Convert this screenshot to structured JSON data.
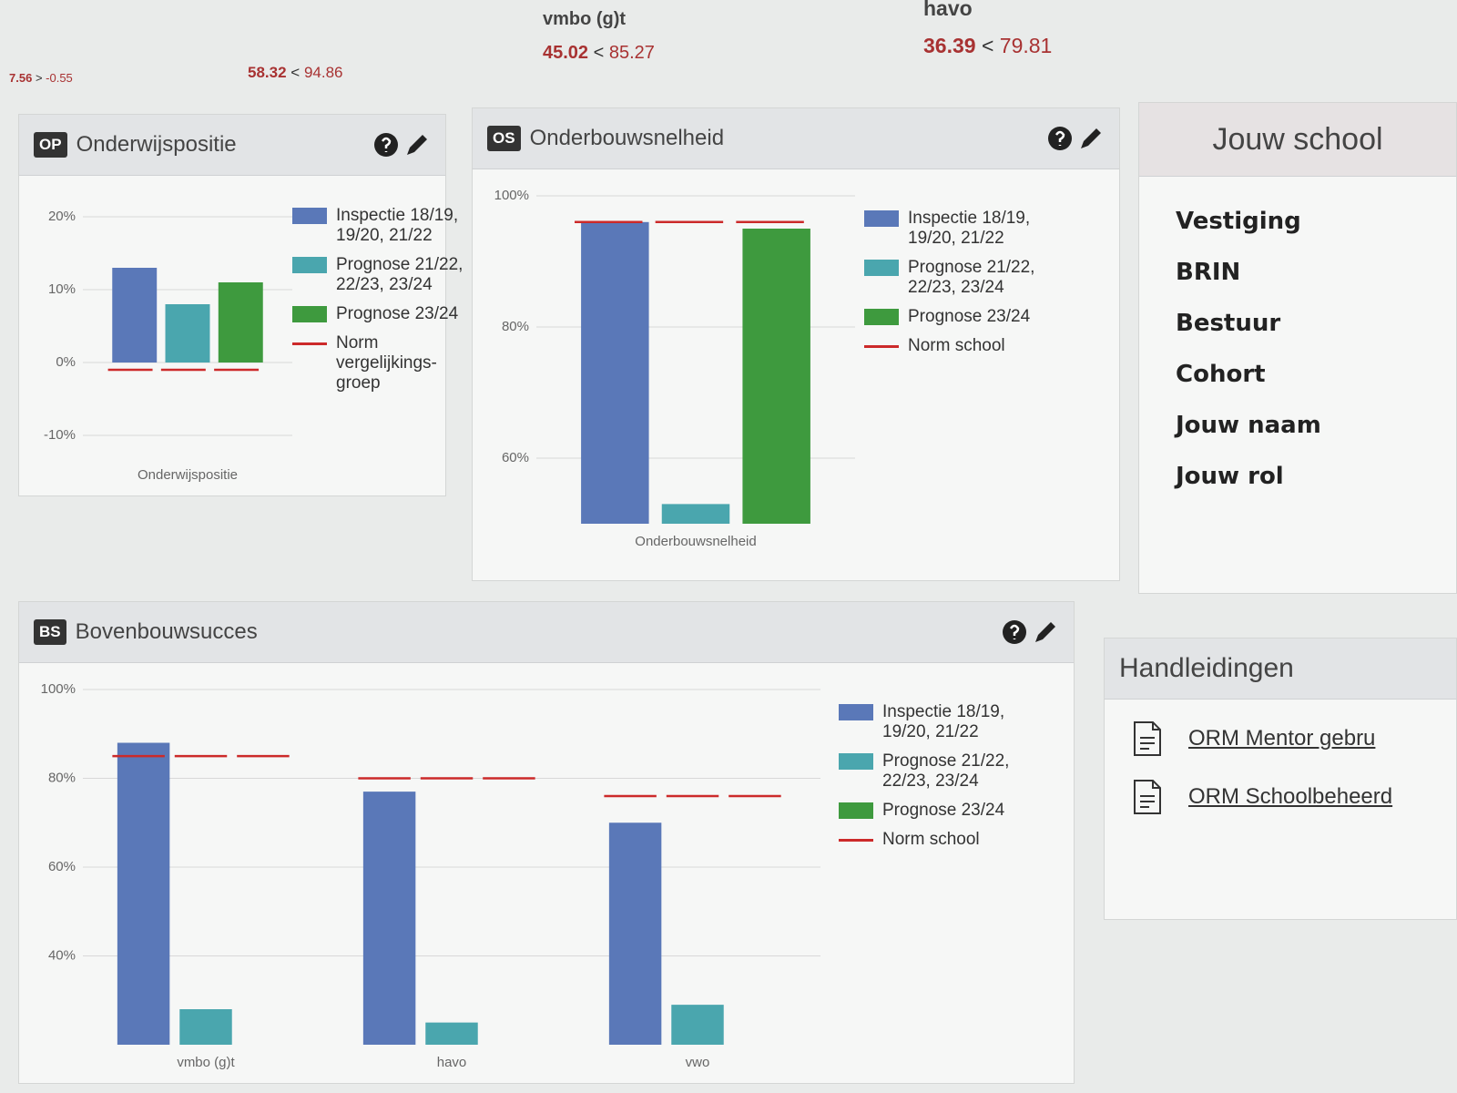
{
  "stats": [
    {
      "value": 7.56,
      "op": ">",
      "ref": -0.55
    },
    {
      "value": 58.32,
      "op": "<",
      "ref": 94.86
    },
    {
      "label": "vmbo (g)t",
      "value": 45.02,
      "op": "<",
      "ref": 85.27
    },
    {
      "label": "havo",
      "value": 36.39,
      "op": "<",
      "ref": 79.81
    }
  ],
  "chart_data": [
    {
      "type": "bar",
      "badge": "OP",
      "title": "Onderwijspositie",
      "categories": [
        "Onderwijspositie"
      ],
      "ylim": [
        -13,
        22
      ],
      "yticks": [
        {
          "value": -10,
          "label": "-10%"
        },
        {
          "value": 0,
          "label": "0%"
        },
        {
          "value": 10,
          "label": "10%"
        },
        {
          "value": 20,
          "label": "20%"
        }
      ],
      "grid": true,
      "series": [
        {
          "name": "Inspectie 18/19, 19/20, 21/22",
          "color": "#5a78b8",
          "values": [
            13
          ]
        },
        {
          "name": "Prognose 21/22, 22/23, 23/24",
          "color": "#4aa6ae",
          "values": [
            8
          ]
        },
        {
          "name": "Prognose 23/24",
          "color": "#3e9a3e",
          "values": [
            11
          ]
        },
        {
          "name": "Norm vergelijkings- groep",
          "color": "#cc2a2a",
          "kind": "line",
          "values": [
            -1
          ]
        }
      ]
    },
    {
      "type": "bar",
      "badge": "OS",
      "title": "Onderbouwsnelheid",
      "categories": [
        "Onderbouwsnelheid"
      ],
      "ylim": [
        50,
        100
      ],
      "yticks": [
        {
          "value": 60,
          "label": "60%"
        },
        {
          "value": 80,
          "label": "80%"
        },
        {
          "value": 100,
          "label": "100%"
        }
      ],
      "grid": true,
      "series": [
        {
          "name": "Inspectie 18/19, 19/20, 21/22",
          "color": "#5a78b8",
          "values": [
            96
          ]
        },
        {
          "name": "Prognose 21/22, 22/23, 23/24",
          "color": "#4aa6ae",
          "values": [
            53
          ]
        },
        {
          "name": "Prognose 23/24",
          "color": "#3e9a3e",
          "values": [
            95
          ]
        },
        {
          "name": "Norm school",
          "color": "#cc2a2a",
          "kind": "line",
          "values": [
            96
          ]
        }
      ]
    },
    {
      "type": "bar",
      "badge": "BS",
      "title": "Bovenbouwsucces",
      "categories": [
        "vmbo (g)t",
        "havo",
        "vwo"
      ],
      "ylim": [
        20,
        100
      ],
      "yticks": [
        {
          "value": 40,
          "label": "40%"
        },
        {
          "value": 60,
          "label": "60%"
        },
        {
          "value": 80,
          "label": "80%"
        },
        {
          "value": 100,
          "label": "100%"
        }
      ],
      "grid": true,
      "series": [
        {
          "name": "Inspectie 18/19, 19/20, 21/22",
          "color": "#5a78b8",
          "values": [
            88,
            77,
            70
          ]
        },
        {
          "name": "Prognose 21/22, 22/23, 23/24",
          "color": "#4aa6ae",
          "values": [
            28,
            25,
            29
          ]
        },
        {
          "name": "Prognose 23/24",
          "color": "#3e9a3e",
          "values": [
            null,
            null,
            null
          ]
        },
        {
          "name": "Norm school",
          "color": "#cc2a2a",
          "kind": "line",
          "values": [
            85,
            80,
            76
          ]
        }
      ]
    }
  ],
  "school": {
    "title": "Jouw school",
    "fields": [
      "Vestiging",
      "BRIN",
      "Bestuur",
      "Cohort",
      "Jouw naam",
      "Jouw rol"
    ]
  },
  "manuals": {
    "title": "Handleidingen",
    "links": [
      "ORM Mentor gebru",
      "ORM Schoolbeheerd"
    ]
  }
}
